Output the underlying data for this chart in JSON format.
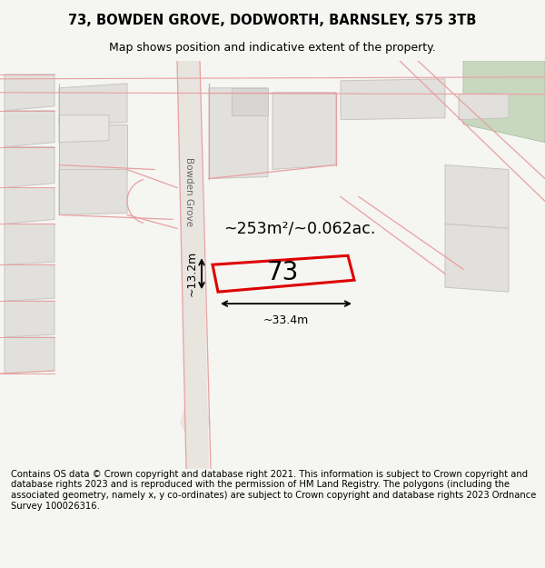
{
  "title": "73, BOWDEN GROVE, DODWORTH, BARNSLEY, S75 3TB",
  "subtitle": "Map shows position and indicative extent of the property.",
  "area_text": "~253m²/~0.062ac.",
  "label_73": "73",
  "dim_width": "~33.4m",
  "dim_height": "~13.2m",
  "street_label": "Bowden Grove",
  "footer": "Contains OS data © Crown copyright and database right 2021. This information is subject to Crown copyright and database rights 2023 and is reproduced with the permission of HM Land Registry. The polygons (including the associated geometry, namely x, y co-ordinates) are subject to Crown copyright and database rights 2023 Ordnance Survey 100026316.",
  "bg_color": "#f5f5f2",
  "map_bg": "#f9f8f6",
  "building_fill": "#e2e0dc",
  "building_edge": "#c8c4c0",
  "pink_line_color": "#e8a0a0",
  "red_poly_color": "#dd0000",
  "green_fill": "#c8d8c0",
  "title_fontsize": 10.5,
  "subtitle_fontsize": 9,
  "footer_fontsize": 7.2,
  "label73_fontsize": 20,
  "area_fontsize": 12.5,
  "dim_fontsize": 9
}
